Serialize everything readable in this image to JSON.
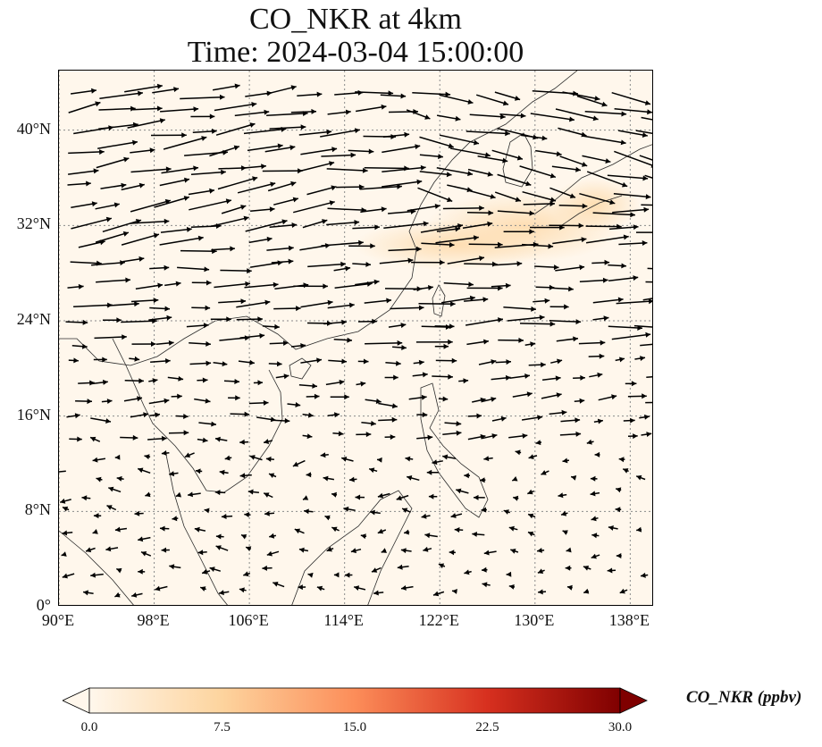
{
  "title_line1": "CO_NKR at 4km",
  "title_line2": "Time: 2024-03-04 15:00:00",
  "colors": {
    "ocean": "#fff7ec",
    "plume": "#fdd9a8",
    "coastline": "#2b2b2b",
    "arrow": "#000000",
    "grid": "#8a8a8a"
  },
  "map": {
    "lon_range": [
      90,
      140
    ],
    "lat_range": [
      0,
      45
    ],
    "lat_ticks": [
      "40°N",
      "32°N",
      "24°N",
      "16°N",
      "8°N",
      "0°"
    ],
    "lon_ticks": [
      "90°E",
      "98°E",
      "106°E",
      "114°E",
      "122°E",
      "130°E",
      "138°E"
    ],
    "gridlines": "dotted"
  },
  "colorbar": {
    "label": "CO_NKR (ppbv)",
    "min": 0,
    "max": 30,
    "ticks": [
      "0.0",
      "7.5",
      "15.0",
      "22.5",
      "30.0"
    ],
    "colormap": [
      "#fff7ec",
      "#fdd49e",
      "#fc8d59",
      "#d7301f",
      "#7f0000"
    ],
    "extend": "both"
  }
}
